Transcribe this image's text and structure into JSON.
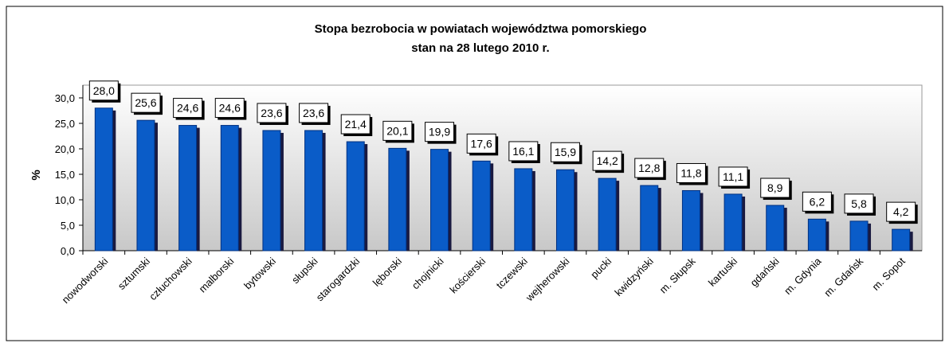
{
  "chart_data": {
    "type": "bar",
    "title": "Stopa bezrobocia w powiatach województwa pomorskiego",
    "subtitle": "stan na 28 lutego 2010 r.",
    "y_label": "%",
    "categories": [
      "nowodworski",
      "sztumski",
      "człuchowski",
      "malborski",
      "bytowski",
      "słupski",
      "starogardzki",
      "lęborski",
      "chojnicki",
      "kościerski",
      "tczewski",
      "wejherowski",
      "pucki",
      "kwidzyński",
      "m. Słupsk",
      "kartuski",
      "gdański",
      "m. Gdynia",
      "m. Gdańsk",
      "m. Sopot"
    ],
    "values": [
      28.0,
      25.6,
      24.6,
      24.6,
      23.6,
      23.6,
      21.4,
      20.1,
      19.9,
      17.6,
      16.1,
      15.9,
      14.2,
      12.8,
      11.8,
      11.1,
      8.9,
      6.2,
      5.8,
      4.2
    ],
    "value_labels": [
      "28,0",
      "25,6",
      "24,6",
      "24,6",
      "23,6",
      "23,6",
      "21,4",
      "20,1",
      "19,9",
      "17,6",
      "16,1",
      "15,9",
      "14,2",
      "12,8",
      "11,8",
      "11,1",
      "8,9",
      "6,2",
      "5,8",
      "4,2"
    ],
    "color": "#0a5cc8",
    "ylim": [
      0,
      30
    ],
    "yticks": [
      {
        "value": 0,
        "label": "0,0"
      },
      {
        "value": 5,
        "label": "5,0"
      },
      {
        "value": 10,
        "label": "10,0"
      },
      {
        "value": 15,
        "label": "15,0"
      },
      {
        "value": 20,
        "label": "20,0"
      },
      {
        "value": 25,
        "label": "25,0"
      },
      {
        "value": 30,
        "label": "30,0"
      }
    ],
    "grid": false
  }
}
